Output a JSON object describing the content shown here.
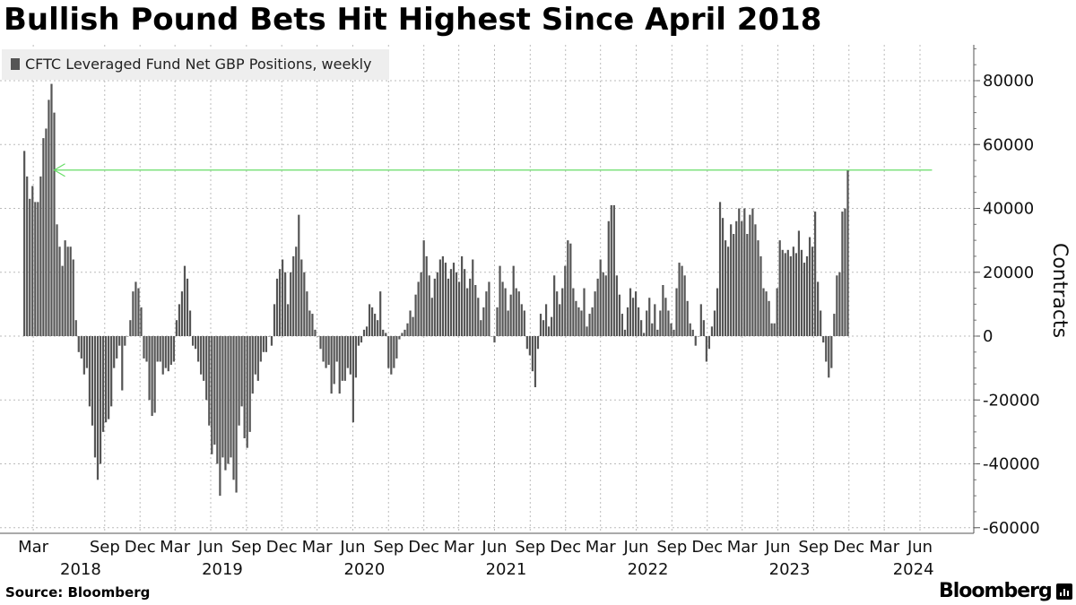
{
  "title": "Bullish Pound Bets Hit Highest Since April 2018",
  "source": "Source: Bloomberg",
  "brand": "Bloomberg",
  "colors": {
    "bars": "#555555",
    "arrow": "#66dd66",
    "grid": "#bbbbbb"
  },
  "chart_data": {
    "type": "bar",
    "title": "Bullish Pound Bets Hit Highest Since April 2018",
    "ylabel": "Contracts",
    "series": [
      {
        "name": "CFTC Leveraged Fund Net GBP Positions, weekly"
      }
    ],
    "legend_placement": "top-left",
    "ylim": [
      -62000,
      92000
    ],
    "y_ticks": [
      80000,
      60000,
      40000,
      20000,
      0,
      -20000,
      -40000,
      -60000
    ],
    "grid": true,
    "start_date": "2018-02-06",
    "frequency": "weekly",
    "x_ticks": [
      {
        "label": "Mar",
        "date": "2018-03-01"
      },
      {
        "label": "Sep",
        "date": "2018-09-01"
      },
      {
        "label": "Dec",
        "date": "2018-12-01"
      },
      {
        "label": "Mar",
        "date": "2019-03-01"
      },
      {
        "label": "Jun",
        "date": "2019-06-01"
      },
      {
        "label": "Sep",
        "date": "2019-09-01"
      },
      {
        "label": "Dec",
        "date": "2019-12-01"
      },
      {
        "label": "Mar",
        "date": "2020-03-01"
      },
      {
        "label": "Jun",
        "date": "2020-06-01"
      },
      {
        "label": "Sep",
        "date": "2020-09-01"
      },
      {
        "label": "Dec",
        "date": "2020-12-01"
      },
      {
        "label": "Mar",
        "date": "2021-03-01"
      },
      {
        "label": "Jun",
        "date": "2021-06-01"
      },
      {
        "label": "Sep",
        "date": "2021-09-01"
      },
      {
        "label": "Dec",
        "date": "2021-12-01"
      },
      {
        "label": "Mar",
        "date": "2022-03-01"
      },
      {
        "label": "Jun",
        "date": "2022-06-01"
      },
      {
        "label": "Sep",
        "date": "2022-09-01"
      },
      {
        "label": "Dec",
        "date": "2022-12-01"
      },
      {
        "label": "Mar",
        "date": "2023-03-01"
      },
      {
        "label": "Jun",
        "date": "2023-06-01"
      },
      {
        "label": "Sep",
        "date": "2023-09-01"
      },
      {
        "label": "Dec",
        "date": "2023-12-01"
      },
      {
        "label": "Mar",
        "date": "2024-03-01"
      },
      {
        "label": "Jun",
        "date": "2024-06-01"
      }
    ],
    "year_labels": [
      {
        "label": "2018",
        "date": "2018-07-01"
      },
      {
        "label": "2019",
        "date": "2019-07-01"
      },
      {
        "label": "2020",
        "date": "2020-07-01"
      },
      {
        "label": "2021",
        "date": "2021-07-01"
      },
      {
        "label": "2022",
        "date": "2022-07-01"
      },
      {
        "label": "2023",
        "date": "2023-07-01"
      },
      {
        "label": "2024",
        "date": "2024-05-15"
      }
    ],
    "annotation": {
      "type": "arrow",
      "value": 52000,
      "from_date": "2024-07-02",
      "to_date": "2018-04-24"
    },
    "values": [
      58000,
      50000,
      43000,
      47000,
      42000,
      42000,
      50000,
      62000,
      65000,
      74000,
      79000,
      70000,
      35000,
      28000,
      22000,
      30000,
      28000,
      28000,
      24000,
      5000,
      -5000,
      -7000,
      -12000,
      -10000,
      -22000,
      -28000,
      -38000,
      -45000,
      -40000,
      -30000,
      -27000,
      -26000,
      -22000,
      -10000,
      -7000,
      -3000,
      -17000,
      -3000,
      0,
      5000,
      14000,
      17000,
      15000,
      9000,
      -7000,
      -8000,
      -20000,
      -25000,
      -24000,
      -8000,
      -8000,
      -12000,
      -10000,
      -11000,
      -9000,
      -8000,
      5000,
      10000,
      14000,
      22000,
      18000,
      8000,
      -3000,
      -4000,
      -8000,
      -12000,
      -14000,
      -20000,
      -28000,
      -37000,
      -34000,
      -40000,
      -50000,
      -38000,
      -42000,
      -40000,
      -38000,
      -45000,
      -49000,
      -28000,
      -22000,
      -32000,
      -35000,
      -30000,
      -18000,
      -12000,
      -14000,
      -8000,
      -5000,
      -5000,
      0,
      -3000,
      10000,
      18000,
      21000,
      24000,
      20000,
      10000,
      20000,
      25000,
      28000,
      38000,
      24000,
      20000,
      14000,
      8000,
      7000,
      2000,
      0,
      -4000,
      -8000,
      -10000,
      -9000,
      -18000,
      -15000,
      -8000,
      -18000,
      -14000,
      -14000,
      -10000,
      -12000,
      -27000,
      -13000,
      -3000,
      -2000,
      2000,
      3000,
      10000,
      9000,
      7000,
      5000,
      14000,
      2000,
      1000,
      -10000,
      -12000,
      -10000,
      -7000,
      -1000,
      1000,
      2000,
      4000,
      8000,
      6000,
      13000,
      17000,
      20000,
      30000,
      25000,
      19000,
      12000,
      18000,
      20000,
      24000,
      25000,
      23000,
      18000,
      21000,
      23000,
      20000,
      17000,
      25000,
      21000,
      15000,
      18000,
      24000,
      16000,
      12000,
      5000,
      9000,
      14000,
      17000,
      0,
      -2000,
      9000,
      22000,
      17000,
      15000,
      8000,
      13000,
      22000,
      15000,
      14000,
      10000,
      8000,
      -4000,
      -6000,
      -11000,
      -16000,
      -4000,
      7000,
      5000,
      10000,
      3000,
      6000,
      19000,
      14000,
      10000,
      15000,
      22000,
      30000,
      29000,
      15000,
      11000,
      9000,
      8000,
      15000,
      3000,
      7000,
      9000,
      14000,
      18000,
      24000,
      20000,
      19000,
      36000,
      41000,
      41000,
      19000,
      13000,
      7000,
      2000,
      9000,
      15000,
      12000,
      14000,
      9000,
      5000,
      1000,
      8000,
      12000,
      4000,
      10000,
      2000,
      8000,
      16000,
      12000,
      8000,
      4000,
      2000,
      15000,
      23000,
      22000,
      19000,
      11000,
      4000,
      2000,
      -3000,
      0,
      10000,
      5000,
      -8000,
      -4000,
      3000,
      8000,
      15000,
      42000,
      37000,
      30000,
      28000,
      35000,
      32000,
      36000,
      40000,
      36000,
      40000,
      32000,
      38000,
      40000,
      35000,
      30000,
      25000,
      15000,
      14000,
      11000,
      4000,
      4000,
      15000,
      30000,
      27000,
      26000,
      27000,
      25000,
      28000,
      26000,
      33000,
      27000,
      23000,
      25000,
      31000,
      28000,
      39000,
      17000,
      8000,
      -2000,
      -8000,
      -13000,
      -10000,
      7000,
      19000,
      20000,
      39000,
      40000,
      52000
    ]
  }
}
